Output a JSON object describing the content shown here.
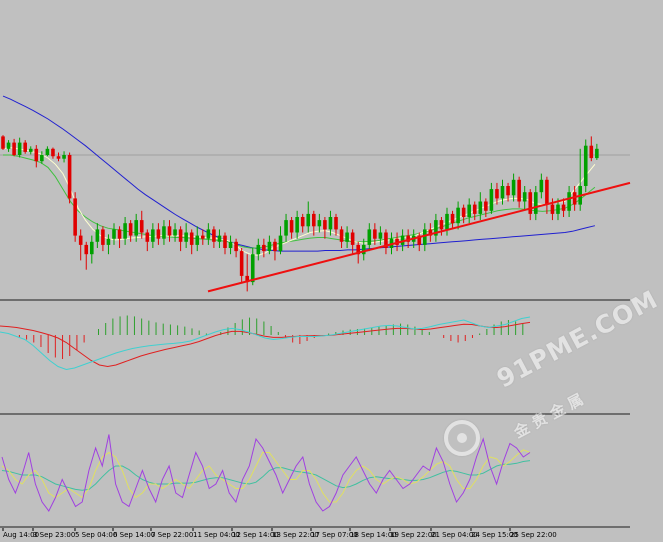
{
  "colors": {
    "background": "#c0c0c0",
    "bull": "#00a000",
    "bear": "#e00000",
    "ma_fast": "#ffffd0",
    "ma_mid": "#40c040",
    "ma_slow": "#2020d0",
    "trendline": "#ee1010",
    "level": "#a0a0a0",
    "osma_hist": "#2da02d",
    "osma_hist_neg": "#e02020",
    "macd_signal": "#e02020",
    "macd_main": "#40d0d0",
    "stoch_k": "#a040e0",
    "stoch_d": "#e0e060",
    "stoch_x": "#40c0a0"
  },
  "watermark": {
    "text": "91PME.COM",
    "sub": "金 贵 金 属",
    "icon": "logo-ring-icon"
  },
  "time_axis": {
    "labels": [
      "Aug 14:00",
      "3 Sep 23:00",
      "5 Sep 04:00",
      "6 Sep 14:00",
      "7 Sep 22:00",
      "11 Sep 04:00",
      "12 Sep 14:00",
      "13 Sep 22:00",
      "17 Sep 07:00",
      "18 Sep 14:00",
      "19 Sep 22:00",
      "21 Sep 04:00",
      "24 Sep 15:00",
      "25 Sep 22:00"
    ]
  },
  "chart_data": {
    "type": "candlestick",
    "candles": [
      [
        0.3,
        0.1,
        0.32,
        0.08
      ],
      [
        0.1,
        0.2,
        0.24,
        0.05
      ],
      [
        0.2,
        0.0,
        0.26,
        -0.02
      ],
      [
        0.0,
        0.2,
        0.28,
        -0.04
      ],
      [
        0.2,
        0.05,
        0.24,
        0.02
      ],
      [
        0.05,
        0.1,
        0.14,
        0.01
      ],
      [
        0.1,
        -0.1,
        0.16,
        -0.2
      ],
      [
        -0.1,
        0.0,
        0.06,
        -0.14
      ],
      [
        0.0,
        0.1,
        0.14,
        -0.02
      ],
      [
        0.1,
        -0.02,
        0.12,
        -0.06
      ],
      [
        -0.02,
        -0.06,
        0.04,
        -0.1
      ],
      [
        -0.06,
        0.0,
        0.06,
        -0.12
      ],
      [
        0.0,
        -0.7,
        0.04,
        -0.78
      ],
      [
        -0.7,
        -1.3,
        -0.6,
        -1.4
      ],
      [
        -1.3,
        -1.45,
        -1.2,
        -1.7
      ],
      [
        -1.45,
        -1.6,
        -1.4,
        -1.85
      ],
      [
        -1.6,
        -1.4,
        -1.3,
        -1.75
      ],
      [
        -1.4,
        -1.2,
        -1.1,
        -1.5
      ],
      [
        -1.2,
        -1.45,
        -1.15,
        -1.55
      ],
      [
        -1.45,
        -1.35,
        -1.28,
        -1.6
      ],
      [
        -1.35,
        -1.2,
        -1.1,
        -1.45
      ],
      [
        -1.2,
        -1.35,
        -1.15,
        -1.5
      ],
      [
        -1.35,
        -1.1,
        -1.0,
        -1.45
      ],
      [
        -1.1,
        -1.3,
        -1.05,
        -1.4
      ],
      [
        -1.3,
        -1.05,
        -0.95,
        -1.4
      ],
      [
        -1.05,
        -1.25,
        -0.9,
        -1.35
      ],
      [
        -1.25,
        -1.4,
        -1.2,
        -1.55
      ],
      [
        -1.4,
        -1.2,
        -1.1,
        -1.5
      ],
      [
        -1.2,
        -1.35,
        -1.1,
        -1.45
      ],
      [
        -1.35,
        -1.15,
        -1.05,
        -1.45
      ],
      [
        -1.15,
        -1.3,
        -1.05,
        -1.4
      ],
      [
        -1.3,
        -1.2,
        -1.1,
        -1.4
      ],
      [
        -1.2,
        -1.4,
        -1.15,
        -1.55
      ],
      [
        -1.4,
        -1.25,
        -1.1,
        -1.5
      ],
      [
        -1.25,
        -1.45,
        -1.2,
        -1.6
      ],
      [
        -1.45,
        -1.3,
        -1.15,
        -1.55
      ],
      [
        -1.3,
        -1.35,
        -1.2,
        -1.45
      ],
      [
        -1.35,
        -1.2,
        -1.1,
        -1.45
      ],
      [
        -1.2,
        -1.4,
        -1.15,
        -1.5
      ],
      [
        -1.4,
        -1.3,
        -1.2,
        -1.5
      ],
      [
        -1.3,
        -1.5,
        -1.25,
        -1.6
      ],
      [
        -1.5,
        -1.4,
        -1.3,
        -1.6
      ],
      [
        -1.4,
        -1.55,
        -1.35,
        -1.65
      ],
      [
        -1.55,
        -1.95,
        -1.5,
        -2.05
      ],
      [
        -1.95,
        -2.05,
        -1.6,
        -2.2
      ],
      [
        -2.05,
        -1.6,
        -1.5,
        -2.1
      ],
      [
        -1.6,
        -1.45,
        -1.35,
        -1.7
      ],
      [
        -1.45,
        -1.55,
        -1.35,
        -1.65
      ],
      [
        -1.55,
        -1.4,
        -1.3,
        -1.6
      ],
      [
        -1.4,
        -1.55,
        -1.35,
        -1.7
      ],
      [
        -1.55,
        -1.3,
        -1.15,
        -1.6
      ],
      [
        -1.3,
        -1.05,
        -0.95,
        -1.4
      ],
      [
        -1.05,
        -1.25,
        -1.0,
        -1.35
      ],
      [
        -1.25,
        -1.0,
        -0.9,
        -1.35
      ],
      [
        -1.0,
        -1.15,
        -0.95,
        -1.25
      ],
      [
        -1.15,
        -0.95,
        -0.75,
        -1.25
      ],
      [
        -0.95,
        -1.15,
        -0.9,
        -1.3
      ],
      [
        -1.15,
        -1.05,
        -0.95,
        -1.25
      ],
      [
        -1.05,
        -1.2,
        -1.0,
        -1.35
      ],
      [
        -1.2,
        -1.0,
        -0.9,
        -1.3
      ],
      [
        -1.0,
        -1.2,
        -0.95,
        -1.3
      ],
      [
        -1.2,
        -1.4,
        -1.15,
        -1.5
      ],
      [
        -1.4,
        -1.25,
        -1.15,
        -1.5
      ],
      [
        -1.25,
        -1.45,
        -1.2,
        -1.6
      ],
      [
        -1.45,
        -1.6,
        -1.4,
        -1.75
      ],
      [
        -1.6,
        -1.45,
        -1.35,
        -1.7
      ],
      [
        -1.45,
        -1.2,
        -1.1,
        -1.55
      ],
      [
        -1.2,
        -1.35,
        -1.1,
        -1.45
      ],
      [
        -1.35,
        -1.25,
        -1.15,
        -1.45
      ],
      [
        -1.25,
        -1.5,
        -1.2,
        -1.6
      ],
      [
        -1.5,
        -1.35,
        -1.25,
        -1.6
      ],
      [
        -1.35,
        -1.45,
        -1.25,
        -1.55
      ],
      [
        -1.45,
        -1.3,
        -1.2,
        -1.55
      ],
      [
        -1.3,
        -1.4,
        -1.2,
        -1.5
      ],
      [
        -1.4,
        -1.3,
        -1.2,
        -1.5
      ],
      [
        -1.3,
        -1.45,
        -1.25,
        -1.55
      ],
      [
        -1.45,
        -1.2,
        -1.1,
        -1.55
      ],
      [
        -1.2,
        -1.3,
        -1.1,
        -1.4
      ],
      [
        -1.3,
        -1.05,
        -0.95,
        -1.4
      ],
      [
        -1.05,
        -1.2,
        -1.0,
        -1.3
      ],
      [
        -1.2,
        -0.95,
        -0.85,
        -1.3
      ],
      [
        -0.95,
        -1.1,
        -0.9,
        -1.2
      ],
      [
        -1.1,
        -0.85,
        -0.75,
        -1.2
      ],
      [
        -0.85,
        -1.0,
        -0.8,
        -1.1
      ],
      [
        -1.0,
        -0.8,
        -0.7,
        -1.1
      ],
      [
        -0.8,
        -0.95,
        -0.75,
        -1.05
      ],
      [
        -0.95,
        -0.75,
        -0.6,
        -1.05
      ],
      [
        -0.75,
        -0.9,
        -0.7,
        -1.0
      ],
      [
        -0.9,
        -0.55,
        -0.45,
        -0.95
      ],
      [
        -0.55,
        -0.7,
        -0.45,
        -0.8
      ],
      [
        -0.7,
        -0.5,
        -0.4,
        -0.8
      ],
      [
        -0.5,
        -0.65,
        -0.45,
        -0.75
      ],
      [
        -0.65,
        -0.4,
        -0.3,
        -0.75
      ],
      [
        -0.4,
        -0.75,
        -0.35,
        -0.85
      ],
      [
        -0.75,
        -0.6,
        -0.5,
        -0.9
      ],
      [
        -0.6,
        -0.95,
        -0.55,
        -1.05
      ],
      [
        -0.95,
        -0.6,
        -0.5,
        -1.05
      ],
      [
        -0.6,
        -0.4,
        -0.3,
        -0.7
      ],
      [
        -0.4,
        -0.8,
        -0.35,
        -0.95
      ],
      [
        -0.8,
        -0.95,
        -0.7,
        -1.05
      ],
      [
        -0.95,
        -0.8,
        -0.7,
        -1.05
      ],
      [
        -0.8,
        -0.9,
        -0.7,
        -1.0
      ],
      [
        -0.9,
        -0.6,
        -0.5,
        -1.0
      ],
      [
        -0.6,
        -0.8,
        -0.5,
        -0.9
      ],
      [
        -0.8,
        -0.5,
        0.1,
        -0.9
      ],
      [
        -0.5,
        0.15,
        0.25,
        -0.6
      ],
      [
        0.15,
        -0.05,
        0.3,
        -0.1
      ],
      [
        -0.05,
        0.1,
        0.18,
        -0.08
      ]
    ],
    "ma_fast": [
      0.1,
      0.12,
      0.1,
      0.08,
      0.05,
      0.02,
      -0.05,
      -0.15,
      -0.3,
      -0.55,
      -0.85,
      -1.05,
      -1.2,
      -1.3,
      -1.35,
      -1.37,
      -1.36,
      -1.34,
      -1.33,
      -1.32,
      -1.31,
      -1.3,
      -1.31,
      -1.3,
      -1.3,
      -1.31,
      -1.32,
      -1.33,
      -1.34,
      -1.35,
      -1.38,
      -1.45,
      -1.55,
      -1.6,
      -1.62,
      -1.58,
      -1.5,
      -1.45,
      -1.4,
      -1.35,
      -1.3,
      -1.25,
      -1.23,
      -1.22,
      -1.25,
      -1.3,
      -1.35,
      -1.4,
      -1.42,
      -1.42,
      -1.4,
      -1.38,
      -1.36,
      -1.34,
      -1.32,
      -1.3,
      -1.25,
      -1.2,
      -1.15,
      -1.1,
      -1.05,
      -1.0,
      -0.95,
      -0.9,
      -0.85,
      -0.8,
      -0.75,
      -0.72,
      -0.7,
      -0.7,
      -0.72,
      -0.78,
      -0.8,
      -0.78,
      -0.76,
      -0.75,
      -0.6,
      -0.45,
      -0.3,
      -0.15
    ],
    "ma_mid": [
      0.0,
      0.0,
      -0.02,
      -0.05,
      -0.08,
      -0.12,
      -0.2,
      -0.35,
      -0.55,
      -0.75,
      -0.9,
      -1.0,
      -1.08,
      -1.14,
      -1.18,
      -1.2,
      -1.22,
      -1.24,
      -1.26,
      -1.28,
      -1.3,
      -1.31,
      -1.32,
      -1.33,
      -1.33,
      -1.34,
      -1.35,
      -1.36,
      -1.37,
      -1.38,
      -1.4,
      -1.44,
      -1.48,
      -1.5,
      -1.5,
      -1.48,
      -1.45,
      -1.42,
      -1.4,
      -1.38,
      -1.36,
      -1.34,
      -1.33,
      -1.33,
      -1.35,
      -1.37,
      -1.39,
      -1.4,
      -1.4,
      -1.39,
      -1.38,
      -1.36,
      -1.34,
      -1.32,
      -1.3,
      -1.28,
      -1.25,
      -1.22,
      -1.18,
      -1.14,
      -1.1,
      -1.06,
      -1.02,
      -0.99,
      -0.96,
      -0.93,
      -0.9,
      -0.88,
      -0.87,
      -0.87,
      -0.88,
      -0.9,
      -0.91,
      -0.9,
      -0.88,
      -0.86,
      -0.8,
      -0.72,
      -0.62,
      -0.52
    ],
    "ma_slow": [
      0.95,
      0.9,
      0.84,
      0.78,
      0.72,
      0.65,
      0.58,
      0.5,
      0.42,
      0.33,
      0.24,
      0.15,
      0.05,
      -0.05,
      -0.15,
      -0.25,
      -0.35,
      -0.45,
      -0.55,
      -0.64,
      -0.72,
      -0.8,
      -0.88,
      -0.96,
      -1.03,
      -1.1,
      -1.17,
      -1.23,
      -1.29,
      -1.34,
      -1.39,
      -1.43,
      -1.46,
      -1.49,
      -1.51,
      -1.53,
      -1.54,
      -1.55,
      -1.55,
      -1.55,
      -1.55,
      -1.55,
      -1.55,
      -1.54,
      -1.54,
      -1.54,
      -1.53,
      -1.53,
      -1.52,
      -1.51,
      -1.5,
      -1.49,
      -1.48,
      -1.47,
      -1.46,
      -1.45,
      -1.44,
      -1.43,
      -1.42,
      -1.41,
      -1.4,
      -1.39,
      -1.38,
      -1.37,
      -1.36,
      -1.35,
      -1.34,
      -1.33,
      -1.32,
      -1.31,
      -1.3,
      -1.29,
      -1.28,
      -1.27,
      -1.26,
      -1.25,
      -1.23,
      -1.2,
      -1.17,
      -1.14
    ],
    "level": 0.0,
    "trendline": [
      [
        0,
        -2.2
      ],
      [
        1,
        -0.45
      ]
    ],
    "osma": [
      0.0,
      0.0,
      -0.1,
      -0.15,
      -0.25,
      -0.4,
      -0.6,
      -0.75,
      -0.8,
      -0.7,
      -0.5,
      -0.25,
      0.0,
      0.2,
      0.4,
      0.55,
      0.62,
      0.65,
      0.62,
      0.55,
      0.48,
      0.42,
      0.38,
      0.35,
      0.32,
      0.28,
      0.22,
      0.15,
      0.05,
      0.0,
      0.1,
      0.25,
      0.4,
      0.52,
      0.58,
      0.55,
      0.45,
      0.3,
      0.1,
      -0.1,
      -0.25,
      -0.3,
      -0.2,
      -0.1,
      0.0,
      0.05,
      0.1,
      0.15,
      0.18,
      0.2,
      0.22,
      0.25,
      0.28,
      0.32,
      0.35,
      0.38,
      0.35,
      0.28,
      0.2,
      0.1,
      0.0,
      -0.1,
      -0.2,
      -0.25,
      -0.2,
      -0.1,
      0.05,
      0.2,
      0.35,
      0.45,
      0.5,
      0.45,
      0.4
    ],
    "macd_main": [
      0.1,
      0.05,
      -0.05,
      -0.15,
      -0.35,
      -0.6,
      -0.85,
      -1.05,
      -1.15,
      -1.1,
      -1.0,
      -0.9,
      -0.8,
      -0.7,
      -0.6,
      -0.52,
      -0.45,
      -0.4,
      -0.36,
      -0.33,
      -0.3,
      -0.28,
      -0.25,
      -0.2,
      -0.1,
      0.0,
      0.1,
      0.18,
      0.22,
      0.18,
      0.1,
      0.0,
      -0.1,
      -0.15,
      -0.12,
      -0.08,
      -0.05,
      -0.05,
      -0.05,
      -0.03,
      0.0,
      0.05,
      0.1,
      0.15,
      0.2,
      0.25,
      0.3,
      0.32,
      0.3,
      0.25,
      0.2,
      0.22,
      0.28,
      0.35,
      0.4,
      0.45,
      0.5,
      0.4,
      0.3,
      0.25,
      0.3,
      0.35,
      0.45,
      0.55,
      0.6
    ],
    "macd_signal": [
      0.3,
      0.28,
      0.25,
      0.2,
      0.15,
      0.08,
      0.0,
      -0.1,
      -0.25,
      -0.45,
      -0.65,
      -0.85,
      -1.0,
      -1.05,
      -1.0,
      -0.9,
      -0.8,
      -0.7,
      -0.62,
      -0.55,
      -0.48,
      -0.42,
      -0.36,
      -0.3,
      -0.22,
      -0.12,
      -0.02,
      0.06,
      0.12,
      0.12,
      0.08,
      0.02,
      -0.04,
      -0.08,
      -0.08,
      -0.06,
      -0.04,
      -0.03,
      -0.02,
      -0.02,
      -0.01,
      0.02,
      0.05,
      0.08,
      0.11,
      0.14,
      0.17,
      0.2,
      0.22,
      0.22,
      0.2,
      0.18,
      0.2,
      0.24,
      0.28,
      0.32,
      0.36,
      0.35,
      0.3,
      0.26,
      0.25,
      0.28,
      0.33,
      0.38,
      0.42
    ],
    "stoch_k": [
      70,
      45,
      30,
      50,
      75,
      40,
      20,
      10,
      25,
      45,
      30,
      15,
      20,
      55,
      80,
      60,
      95,
      40,
      20,
      15,
      35,
      55,
      35,
      20,
      45,
      60,
      30,
      25,
      50,
      75,
      60,
      35,
      40,
      55,
      30,
      20,
      45,
      60,
      90,
      80,
      65,
      50,
      30,
      45,
      60,
      70,
      40,
      20,
      10,
      15,
      30,
      50,
      60,
      70,
      55,
      40,
      30,
      45,
      55,
      45,
      35,
      40,
      50,
      60,
      55,
      80,
      65,
      40,
      20,
      30,
      45,
      70,
      90,
      60,
      40,
      65,
      85,
      80,
      70,
      75
    ],
    "stoch_d": [
      60,
      55,
      45,
      40,
      50,
      55,
      45,
      30,
      25,
      30,
      35,
      30,
      25,
      35,
      55,
      70,
      75,
      70,
      55,
      35,
      25,
      30,
      40,
      40,
      35,
      40,
      45,
      40,
      35,
      45,
      55,
      60,
      50,
      45,
      40,
      35,
      35,
      45,
      60,
      75,
      75,
      65,
      55,
      45,
      45,
      55,
      55,
      45,
      30,
      20,
      20,
      30,
      45,
      55,
      60,
      55,
      45,
      40,
      45,
      48,
      45,
      40,
      42,
      48,
      55,
      62,
      65,
      60,
      45,
      35,
      35,
      45,
      60,
      70,
      68,
      60,
      65,
      72,
      78,
      75
    ],
    "stoch_x": [
      55,
      54,
      52,
      50,
      50,
      50,
      48,
      44,
      40,
      38,
      36,
      34,
      33,
      34,
      40,
      48,
      55,
      60,
      60,
      56,
      50,
      45,
      42,
      40,
      40,
      40,
      41,
      41,
      41,
      42,
      44,
      46,
      47,
      47,
      45,
      43,
      41,
      40,
      42,
      48,
      55,
      58,
      58,
      56,
      54,
      53,
      52,
      50,
      46,
      42,
      38,
      36,
      37,
      40,
      44,
      47,
      48,
      47,
      46,
      46,
      45,
      44,
      44,
      45,
      47,
      50,
      53,
      55,
      54,
      52,
      50,
      50,
      52,
      56,
      60,
      62,
      62,
      63,
      65,
      66
    ]
  }
}
